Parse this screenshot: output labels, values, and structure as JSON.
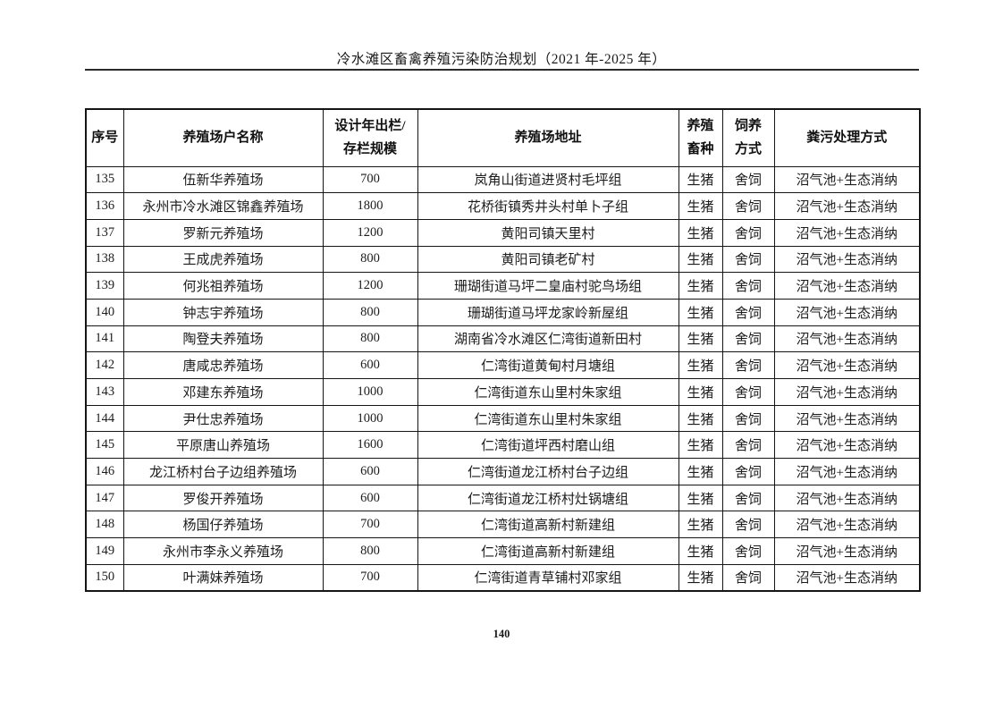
{
  "page": {
    "header_title": "冷水滩区畜禽养殖污染防治规划（2021 年-2025 年）",
    "page_number": "140"
  },
  "table": {
    "headers": {
      "index": "序号",
      "farm_name": "养殖场户名称",
      "scale_line1": "设计年出栏/",
      "scale_line2": "存栏规模",
      "address": "养殖场地址",
      "species_line1": "养殖",
      "species_line2": "畜种",
      "method_line1": "饲养",
      "method_line2": "方式",
      "treatment": "粪污处理方式"
    },
    "rows": [
      {
        "no": "135",
        "name": "伍新华养殖场",
        "scale": "700",
        "address": "岚角山街道进贤村毛坪组",
        "species": "生猪",
        "method": "舍饲",
        "treatment": "沼气池+生态消纳"
      },
      {
        "no": "136",
        "name": "永州市冷水滩区锦鑫养殖场",
        "scale": "1800",
        "address": "花桥街镇秀井头村单卜子组",
        "species": "生猪",
        "method": "舍饲",
        "treatment": "沼气池+生态消纳"
      },
      {
        "no": "137",
        "name": "罗新元养殖场",
        "scale": "1200",
        "address": "黄阳司镇天里村",
        "species": "生猪",
        "method": "舍饲",
        "treatment": "沼气池+生态消纳"
      },
      {
        "no": "138",
        "name": "王成虎养殖场",
        "scale": "800",
        "address": "黄阳司镇老矿村",
        "species": "生猪",
        "method": "舍饲",
        "treatment": "沼气池+生态消纳"
      },
      {
        "no": "139",
        "name": "何兆祖养殖场",
        "scale": "1200",
        "address": "珊瑚街道马坪二皇庙村驼鸟场组",
        "species": "生猪",
        "method": "舍饲",
        "treatment": "沼气池+生态消纳"
      },
      {
        "no": "140",
        "name": "钟志宇养殖场",
        "scale": "800",
        "address": "珊瑚街道马坪龙家岭新屋组",
        "species": "生猪",
        "method": "舍饲",
        "treatment": "沼气池+生态消纳"
      },
      {
        "no": "141",
        "name": "陶登夫养殖场",
        "scale": "800",
        "address": "湖南省冷水滩区仁湾街道新田村",
        "species": "生猪",
        "method": "舍饲",
        "treatment": "沼气池+生态消纳"
      },
      {
        "no": "142",
        "name": "唐咸忠养殖场",
        "scale": "600",
        "address": "仁湾街道黄甸村月塘组",
        "species": "生猪",
        "method": "舍饲",
        "treatment": "沼气池+生态消纳"
      },
      {
        "no": "143",
        "name": "邓建东养殖场",
        "scale": "1000",
        "address": "仁湾街道东山里村朱家组",
        "species": "生猪",
        "method": "舍饲",
        "treatment": "沼气池+生态消纳"
      },
      {
        "no": "144",
        "name": "尹仕忠养殖场",
        "scale": "1000",
        "address": "仁湾街道东山里村朱家组",
        "species": "生猪",
        "method": "舍饲",
        "treatment": "沼气池+生态消纳"
      },
      {
        "no": "145",
        "name": "平原唐山养殖场",
        "scale": "1600",
        "address": "仁湾街道坪西村磨山组",
        "species": "生猪",
        "method": "舍饲",
        "treatment": "沼气池+生态消纳"
      },
      {
        "no": "146",
        "name": "龙江桥村台子边组养殖场",
        "scale": "600",
        "address": "仁湾街道龙江桥村台子边组",
        "species": "生猪",
        "method": "舍饲",
        "treatment": "沼气池+生态消纳"
      },
      {
        "no": "147",
        "name": "罗俊开养殖场",
        "scale": "600",
        "address": "仁湾街道龙江桥村灶锅塘组",
        "species": "生猪",
        "method": "舍饲",
        "treatment": "沼气池+生态消纳"
      },
      {
        "no": "148",
        "name": "杨国仔养殖场",
        "scale": "700",
        "address": "仁湾街道高新村新建组",
        "species": "生猪",
        "method": "舍饲",
        "treatment": "沼气池+生态消纳"
      },
      {
        "no": "149",
        "name": "永州市李永义养殖场",
        "scale": "800",
        "address": "仁湾街道高新村新建组",
        "species": "生猪",
        "method": "舍饲",
        "treatment": "沼气池+生态消纳"
      },
      {
        "no": "150",
        "name": "叶满妹养殖场",
        "scale": "700",
        "address": "仁湾街道青草铺村邓家组",
        "species": "生猪",
        "method": "舍饲",
        "treatment": "沼气池+生态消纳"
      }
    ]
  }
}
